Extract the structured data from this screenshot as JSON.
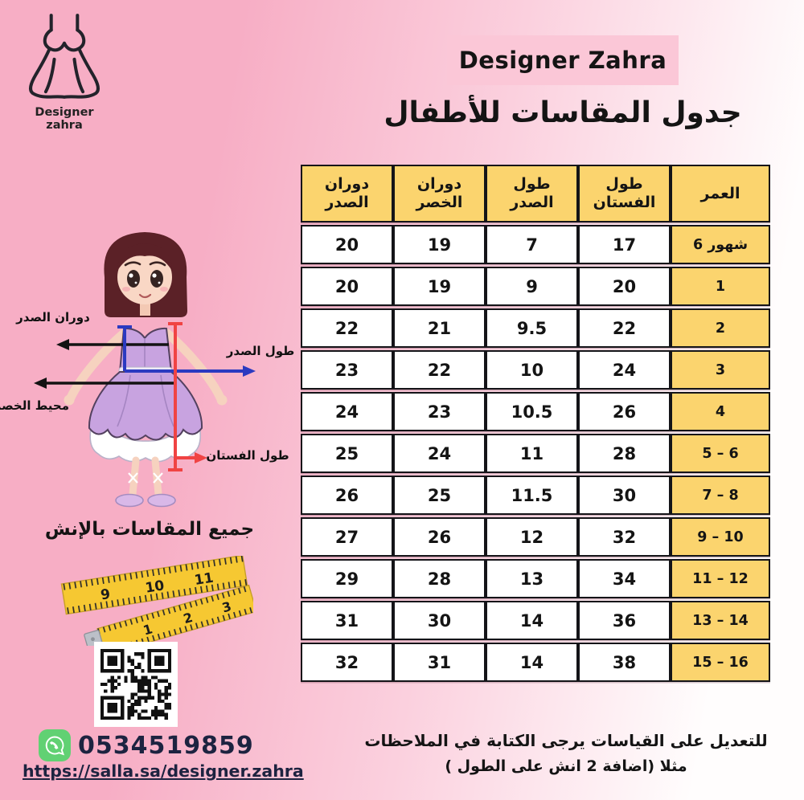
{
  "logo": {
    "brand_name": "Designer zahra",
    "icon": "dress-icon"
  },
  "header": {
    "brand_badge": "Designer Zahra",
    "page_title": "جدول المقاسات للأطفال"
  },
  "table": {
    "columns": [
      "العمر",
      "طول الفستان",
      "طول الصدر",
      "دوران الخصر",
      "دوران الصدر"
    ],
    "rows": [
      {
        "age": "6 شهور",
        "values": [
          17,
          7,
          19,
          20
        ]
      },
      {
        "age": "1",
        "values": [
          20,
          9,
          19,
          20
        ]
      },
      {
        "age": "2",
        "values": [
          22,
          9.5,
          21,
          22
        ]
      },
      {
        "age": "3",
        "values": [
          24,
          10,
          22,
          23
        ]
      },
      {
        "age": "4",
        "values": [
          26,
          10.5,
          23,
          24
        ]
      },
      {
        "age": "5 – 6",
        "values": [
          28,
          11,
          24,
          25
        ]
      },
      {
        "age": "7 – 8",
        "values": [
          30,
          11.5,
          25,
          26
        ]
      },
      {
        "age": "9 – 10",
        "values": [
          32,
          12,
          26,
          27
        ]
      },
      {
        "age": "11 – 12",
        "values": [
          34,
          13,
          28,
          29
        ]
      },
      {
        "age": "13 – 14",
        "values": [
          36,
          14,
          30,
          31
        ]
      },
      {
        "age": "15 – 16",
        "values": [
          38,
          14,
          31,
          32
        ]
      }
    ]
  },
  "figure": {
    "chest_round_label": "دوران الصدر",
    "chest_length_label": "طول الصدر",
    "waist_round_label": "محيط الخصر",
    "dress_length_label": "طول الفستان"
  },
  "notes": {
    "units": "جميع المقاسات بالإنش",
    "footer_line1": "للتعديل على القياسات يرجى الكتابة في الملاحظات",
    "footer_line2": "مثلا (اضافة 2 انش على الطول )"
  },
  "contact": {
    "phone": "0534519859",
    "url": "https://salla.sa/designer.zahra",
    "whatsapp_icon": "whatsapp-icon"
  },
  "colors": {
    "background_left": "#f7aec5",
    "background_mid": "#fbd0de",
    "background_right": "#fffdfd",
    "badge_pink": "#fbc7d7",
    "table_yellow": "#fbd46e",
    "table_border": "#141418",
    "link_ink": "#1d2340",
    "whatsapp_green": "#61d173",
    "arrow_black": "#131313",
    "arrow_blue": "#2b3ac0",
    "arrow_red": "#f04343"
  }
}
